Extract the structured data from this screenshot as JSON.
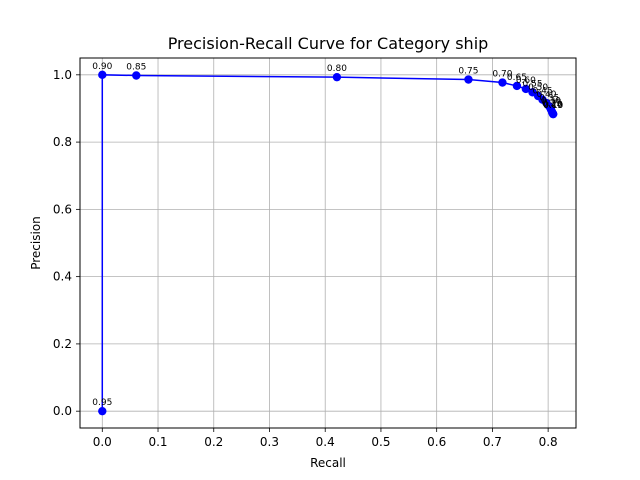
{
  "chart_data": {
    "type": "line",
    "title": "Precision-Recall Curve for Category ship",
    "xlabel": "Recall",
    "ylabel": "Precision",
    "xlim": [
      -0.04,
      0.85
    ],
    "ylim": [
      -0.05,
      1.05
    ],
    "xticks": [
      "0.0",
      "0.1",
      "0.2",
      "0.3",
      "0.4",
      "0.5",
      "0.6",
      "0.7",
      "0.8"
    ],
    "yticks": [
      "0.0",
      "0.2",
      "0.4",
      "0.6",
      "0.8",
      "1.0"
    ],
    "grid": true,
    "color": "#0000ff",
    "series": [
      {
        "points": [
          {
            "x": 0.0,
            "y": 0.0,
            "label": "0.95"
          },
          {
            "x": 0.0,
            "y": 1.0,
            "label": "0.90"
          },
          {
            "x": 0.061,
            "y": 0.998,
            "label": "0.85"
          },
          {
            "x": 0.421,
            "y": 0.993,
            "label": "0.80"
          },
          {
            "x": 0.657,
            "y": 0.986,
            "label": "0.75"
          },
          {
            "x": 0.718,
            "y": 0.977,
            "label": "0.70"
          },
          {
            "x": 0.744,
            "y": 0.967,
            "label": "0.65"
          },
          {
            "x": 0.76,
            "y": 0.958,
            "label": "0.60"
          },
          {
            "x": 0.772,
            "y": 0.948,
            "label": "0.55"
          },
          {
            "x": 0.782,
            "y": 0.937,
            "label": "0.50"
          },
          {
            "x": 0.79,
            "y": 0.926,
            "label": "0.45"
          },
          {
            "x": 0.797,
            "y": 0.916,
            "label": "0.40"
          },
          {
            "x": 0.802,
            "y": 0.906,
            "label": "0.35"
          },
          {
            "x": 0.805,
            "y": 0.897,
            "label": "0.30"
          },
          {
            "x": 0.807,
            "y": 0.89,
            "label": "0.25"
          },
          {
            "x": 0.808,
            "y": 0.886,
            "label": "0.20"
          },
          {
            "x": 0.809,
            "y": 0.884,
            "label": "0.15"
          },
          {
            "x": 0.809,
            "y": 0.883,
            "label": "0.10"
          }
        ]
      }
    ]
  }
}
